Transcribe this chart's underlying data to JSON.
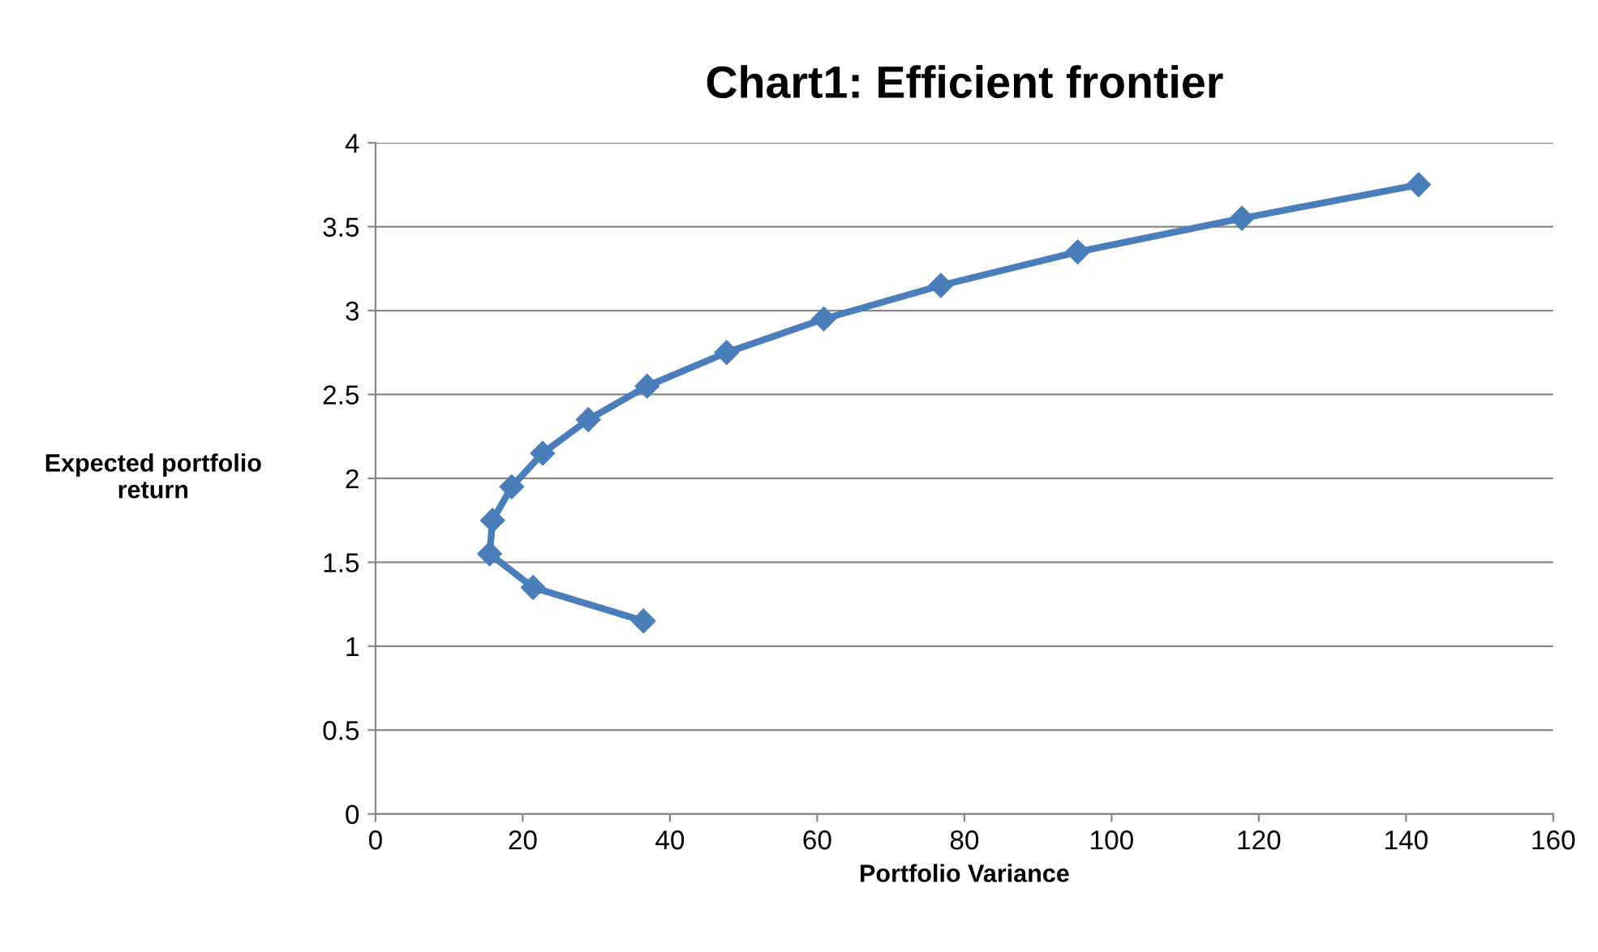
{
  "chart_data": {
    "type": "line",
    "title": "Chart1: Efficient frontier",
    "xlabel": "Portfolio Variance",
    "ylabel": "Expected portfolio\nreturn",
    "series": [
      {
        "color": "#4a7ebb",
        "x": [
          36.4,
          21.4,
          15.5,
          15.9,
          18.5,
          22.7,
          28.9,
          36.9,
          47.7,
          60.9,
          76.8,
          95.4,
          117.7,
          141.7
        ],
        "values": [
          1.15,
          1.35,
          1.55,
          1.75,
          1.95,
          2.15,
          2.35,
          2.55,
          2.75,
          2.95,
          3.15,
          3.35,
          3.55,
          3.75
        ]
      }
    ],
    "xlim": [
      0,
      160
    ],
    "xticks": [
      0,
      20,
      40,
      60,
      80,
      100,
      120,
      140,
      160
    ],
    "ylim": [
      0,
      4
    ],
    "yticks": [
      0,
      0.5,
      1,
      1.5,
      2,
      2.5,
      3,
      3.5,
      4
    ],
    "grid": "y",
    "marker": "diamond",
    "line_style": "solid"
  }
}
